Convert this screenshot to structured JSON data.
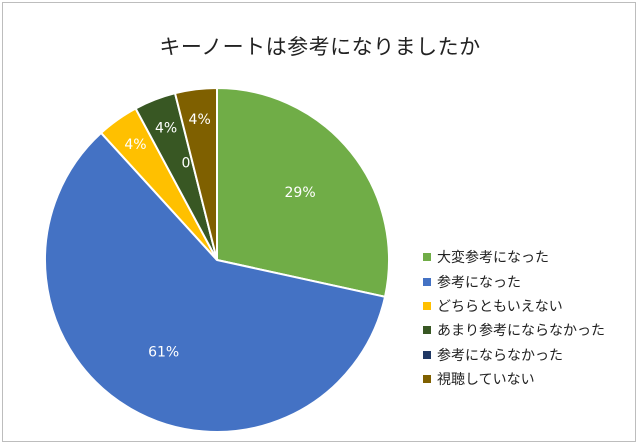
{
  "chart_data": {
    "type": "pie",
    "title": "キーノートは参考になりましたか",
    "legend_position": "right",
    "slices": [
      {
        "label": "大変参考になった",
        "value": 29,
        "display": "29%",
        "color": "#70ad47"
      },
      {
        "label": "参考になった",
        "value": 61,
        "display": "61%",
        "color": "#4472c4"
      },
      {
        "label": "どちらともいえない",
        "value": 4,
        "display": "4%",
        "color": "#ffc000"
      },
      {
        "label": "あまり参考にならなかった",
        "value": 4,
        "display": "4%",
        "color": "#385723"
      },
      {
        "label": "参考にならなかった",
        "value": 0,
        "display": "0%",
        "color": "#203864"
      },
      {
        "label": "視聴していない",
        "value": 4,
        "display": "4%",
        "color": "#7f6000"
      }
    ]
  }
}
